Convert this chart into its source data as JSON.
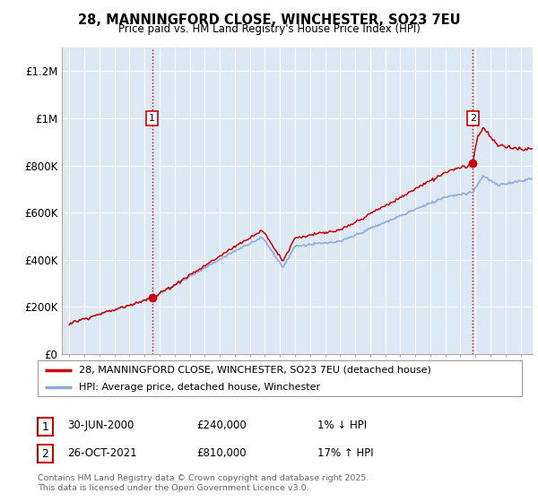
{
  "title": "28, MANNINGFORD CLOSE, WINCHESTER, SO23 7EU",
  "subtitle": "Price paid vs. HM Land Registry's House Price Index (HPI)",
  "ylabel_ticks": [
    "£0",
    "£200K",
    "£400K",
    "£600K",
    "£800K",
    "£1M",
    "£1.2M"
  ],
  "ytick_values": [
    0,
    200000,
    400000,
    600000,
    800000,
    1000000,
    1200000
  ],
  "ylim": [
    0,
    1300000
  ],
  "xlim_start": 1994.5,
  "xlim_end": 2025.8,
  "xticks": [
    1995,
    1996,
    1997,
    1998,
    1999,
    2000,
    2001,
    2002,
    2003,
    2004,
    2005,
    2006,
    2007,
    2008,
    2009,
    2010,
    2011,
    2012,
    2013,
    2014,
    2015,
    2016,
    2017,
    2018,
    2019,
    2020,
    2021,
    2022,
    2023,
    2024,
    2025
  ],
  "line_color_hpi": "#88aadd",
  "line_color_price": "#cc0000",
  "marker_color": "#cc0000",
  "sale1_x": 2000.5,
  "sale1_y": 240000,
  "sale2_x": 2021.82,
  "sale2_y": 810000,
  "vline_color": "#cc0000",
  "legend_line1": "28, MANNINGFORD CLOSE, WINCHESTER, SO23 7EU (detached house)",
  "legend_line2": "HPI: Average price, detached house, Winchester",
  "note1_date": "30-JUN-2000",
  "note1_price": "£240,000",
  "note1_change": "1% ↓ HPI",
  "note2_date": "26-OCT-2021",
  "note2_price": "£810,000",
  "note2_change": "17% ↑ HPI",
  "footer": "Contains HM Land Registry data © Crown copyright and database right 2025.\nThis data is licensed under the Open Government Licence v3.0.",
  "background_color": "#ffffff",
  "plot_bg_color": "#dde8f5",
  "grid_color": "#ffffff"
}
